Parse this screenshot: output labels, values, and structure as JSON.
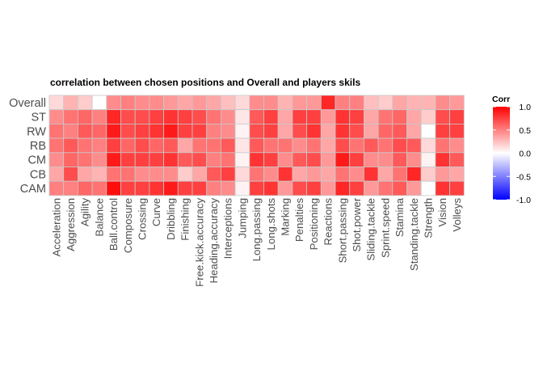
{
  "chart_data": {
    "type": "heatmap",
    "title": "correlation between chosen positions and Overall and players skils",
    "rows": [
      "Overall",
      "ST",
      "RW",
      "RB",
      "CM",
      "CB",
      "CAM"
    ],
    "columns": [
      "Acceleration",
      "Aggression",
      "Agility",
      "Balance",
      "Ball.control",
      "Composure",
      "Crossing",
      "Curve",
      "Dribbling",
      "Finishing",
      "Free.kick.accuracy",
      "Heading.accuracy",
      "Interceptions",
      "Jumping",
      "Long.passing",
      "Long.shots",
      "Marking",
      "Penalties",
      "Positioning",
      "Reactions",
      "Short.passing",
      "Shot.power",
      "Sliding.tackle",
      "Sprint.speed",
      "Stamina",
      "Standing.tackle",
      "Strength",
      "Vision",
      "Volleys"
    ],
    "values": [
      [
        0.15,
        0.3,
        0.2,
        0.0,
        0.45,
        0.5,
        0.45,
        0.45,
        0.4,
        0.35,
        0.4,
        0.35,
        0.25,
        0.15,
        0.45,
        0.45,
        0.3,
        0.4,
        0.4,
        0.85,
        0.5,
        0.5,
        0.25,
        0.2,
        0.35,
        0.3,
        0.3,
        0.45,
        0.4
      ],
      [
        0.45,
        0.55,
        0.6,
        0.5,
        0.85,
        0.7,
        0.7,
        0.75,
        0.8,
        0.75,
        0.7,
        0.55,
        0.45,
        0.1,
        0.65,
        0.75,
        0.35,
        0.75,
        0.75,
        0.4,
        0.8,
        0.75,
        0.35,
        0.55,
        0.6,
        0.35,
        0.2,
        0.7,
        0.75
      ],
      [
        0.55,
        0.5,
        0.65,
        0.6,
        0.9,
        0.7,
        0.75,
        0.8,
        0.9,
        0.75,
        0.75,
        0.5,
        0.45,
        0.05,
        0.7,
        0.75,
        0.35,
        0.7,
        0.8,
        0.35,
        0.8,
        0.7,
        0.35,
        0.6,
        0.65,
        0.35,
        0.0,
        0.75,
        0.75
      ],
      [
        0.55,
        0.65,
        0.55,
        0.5,
        0.75,
        0.6,
        0.7,
        0.6,
        0.65,
        0.35,
        0.55,
        0.55,
        0.65,
        0.1,
        0.65,
        0.55,
        0.55,
        0.45,
        0.55,
        0.35,
        0.7,
        0.55,
        0.65,
        0.55,
        0.7,
        0.65,
        0.15,
        0.55,
        0.45
      ],
      [
        0.45,
        0.6,
        0.55,
        0.45,
        0.9,
        0.75,
        0.75,
        0.75,
        0.8,
        0.65,
        0.7,
        0.5,
        0.55,
        0.05,
        0.8,
        0.75,
        0.45,
        0.65,
        0.7,
        0.4,
        0.9,
        0.75,
        0.45,
        0.45,
        0.65,
        0.45,
        0.05,
        0.8,
        0.65
      ],
      [
        0.35,
        0.7,
        0.35,
        0.3,
        0.55,
        0.55,
        0.45,
        0.45,
        0.45,
        0.2,
        0.35,
        0.65,
        0.75,
        0.15,
        0.55,
        0.45,
        0.8,
        0.35,
        0.4,
        0.35,
        0.55,
        0.45,
        0.8,
        0.35,
        0.55,
        0.85,
        0.2,
        0.4,
        0.35
      ],
      [
        0.5,
        0.5,
        0.6,
        0.55,
        0.95,
        0.75,
        0.75,
        0.8,
        0.9,
        0.75,
        0.75,
        0.5,
        0.45,
        0.05,
        0.75,
        0.8,
        0.4,
        0.7,
        0.75,
        0.4,
        0.85,
        0.75,
        0.4,
        0.55,
        0.65,
        0.4,
        0.0,
        0.8,
        0.75
      ]
    ],
    "legend": {
      "title": "Corr",
      "labels": [
        "1.0",
        "0.5",
        "0.0",
        "-0.5",
        "-1.0"
      ],
      "range": [
        -1,
        1
      ]
    },
    "colors": {
      "low": "#0000ff",
      "mid": "#ffffff",
      "high": "#ff0000",
      "tile_border": "#c8c8c8"
    },
    "grid": false
  }
}
